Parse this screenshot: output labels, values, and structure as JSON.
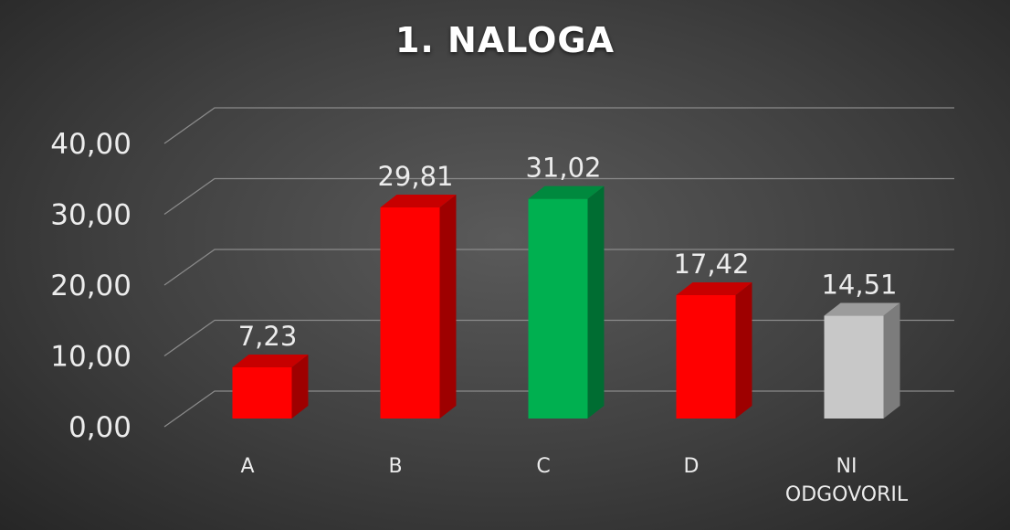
{
  "chart_data": {
    "type": "bar",
    "title": "1. NALOGA",
    "categories": [
      "A",
      "B",
      "C",
      "D",
      "NI ODGOVORIL"
    ],
    "values": [
      7.23,
      29.81,
      31.02,
      17.42,
      14.51
    ],
    "value_labels": [
      "7,23",
      "29,81",
      "31,02",
      "17,42",
      "14,51"
    ],
    "colors": [
      "#ff0000",
      "#ff0000",
      "#00b050",
      "#ff0000",
      "#c8c8c8"
    ],
    "yticks": [
      "0,00",
      "10,00",
      "20,00",
      "30,00",
      "40,00"
    ],
    "ylim": [
      0,
      40
    ],
    "grid": true,
    "legend": "none",
    "style": "3d-column"
  }
}
